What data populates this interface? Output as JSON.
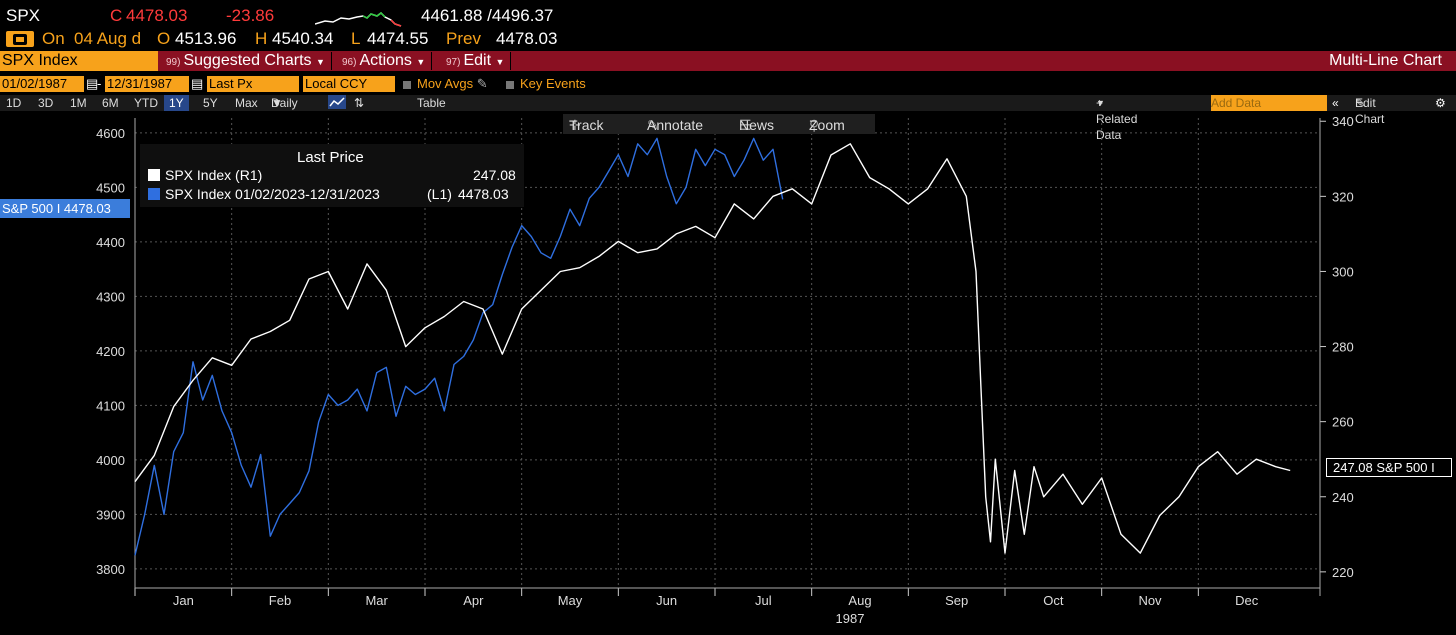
{
  "ticker": {
    "symbol": "SPX",
    "c_marker": "C",
    "last": "4478.03",
    "change": "-23.86",
    "range": "4461.88 /4496.37",
    "on_label": "On",
    "date": "04 Aug d",
    "open_label": "O",
    "open": "4513.96",
    "high_label": "H",
    "high": "4540.34",
    "low_label": "L",
    "low": "4474.55",
    "prev_label": "Prev",
    "prev": "4478.03"
  },
  "menubar": {
    "security": "SPX Index",
    "suggested_num": "99)",
    "suggested": "Suggested Charts",
    "actions_num": "96)",
    "actions": "Actions",
    "edit_num": "97)",
    "edit": "Edit",
    "title": "Multi-Line Chart"
  },
  "params": {
    "start_date": "01/02/1987",
    "end_date": "12/31/1987",
    "dash": "-",
    "field": "Last Px",
    "currency": "Local CCY",
    "mov_avgs": "Mov Avgs",
    "key_events": "Key Events"
  },
  "ranges": {
    "items": [
      "1D",
      "3D",
      "1M",
      "6M",
      "YTD",
      "1Y",
      "5Y",
      "Max"
    ],
    "selected": "1Y",
    "period": "Daily",
    "table": "Table",
    "related": "+ Related Data",
    "add_data_placeholder": "Add Data",
    "edit_chart": "Edit Chart"
  },
  "tools": {
    "track": "Track",
    "annotate": "Annotate",
    "news": "News",
    "zoom": "Zoom"
  },
  "legend": {
    "header": "Last Price",
    "s1_label": "SPX Index  (R1)",
    "s1_value": "247.08",
    "s2_label": "SPX Index 01/02/2023-12/31/2023",
    "s2_axis": "(L1)",
    "s2_value": "4478.03"
  },
  "tags": {
    "left": "S&P 500 I 4478.03",
    "right": "247.08 S&P 500 I"
  },
  "colors": {
    "accent_orange": "#f7a21b",
    "menubar_red": "#8a1022",
    "series_1987": "#ffffff",
    "series_2023": "#2f6fe0",
    "negative": "#ff3b3b"
  },
  "chart_data": {
    "type": "line",
    "x_label": "1987",
    "months": [
      "Jan",
      "Feb",
      "Mar",
      "Apr",
      "May",
      "Jun",
      "Jul",
      "Aug",
      "Sep",
      "Oct",
      "Nov",
      "Dec"
    ],
    "left_axis": {
      "ticks": [
        3800,
        3900,
        4000,
        4100,
        4200,
        4300,
        4400,
        4500,
        4600
      ],
      "ylim": [
        3765,
        4620
      ]
    },
    "right_axis": {
      "ticks": [
        220,
        240,
        260,
        280,
        300,
        320,
        340
      ],
      "ylim": [
        215.7,
        339.8
      ]
    },
    "grid": true,
    "series": [
      {
        "name": "SPX Index (R1)",
        "axis": "right",
        "x_month": [
          0.0,
          0.2,
          0.4,
          0.6,
          0.8,
          1.0,
          1.2,
          1.4,
          1.6,
          1.8,
          2.0,
          2.2,
          2.4,
          2.6,
          2.8,
          3.0,
          3.2,
          3.4,
          3.6,
          3.8,
          4.0,
          4.2,
          4.4,
          4.6,
          4.8,
          5.0,
          5.2,
          5.4,
          5.6,
          5.8,
          6.0,
          6.2,
          6.4,
          6.6,
          6.8,
          7.0,
          7.2,
          7.4,
          7.6,
          7.8,
          8.0,
          8.2,
          8.4,
          8.6,
          8.7,
          8.75,
          8.8,
          8.85,
          8.9,
          9.0,
          9.1,
          9.2,
          9.3,
          9.4,
          9.6,
          9.8,
          10.0,
          10.2,
          10.4,
          10.6,
          10.8,
          11.0,
          11.2,
          11.4,
          11.6,
          11.8,
          11.95
        ],
        "values": [
          244,
          251,
          264,
          271,
          277,
          275,
          282,
          284,
          287,
          298,
          300,
          290,
          302,
          295,
          280,
          285,
          288,
          292,
          290,
          278,
          290,
          295,
          300,
          301,
          304,
          308,
          305,
          306,
          310,
          312,
          309,
          318,
          314,
          320,
          322,
          318,
          331,
          334,
          325,
          322,
          318,
          322,
          330,
          320,
          300,
          270,
          240,
          228,
          250,
          225,
          247,
          230,
          248,
          240,
          246,
          238,
          245,
          230,
          225,
          235,
          240,
          248,
          252,
          246,
          250,
          248,
          247
        ]
      },
      {
        "name": "SPX Index 01/02/2023-12/31/2023 (L1)",
        "axis": "left",
        "x_month": [
          0.0,
          0.1,
          0.2,
          0.3,
          0.4,
          0.5,
          0.6,
          0.7,
          0.8,
          0.9,
          1.0,
          1.1,
          1.2,
          1.3,
          1.4,
          1.5,
          1.6,
          1.7,
          1.8,
          1.9,
          2.0,
          2.1,
          2.2,
          2.3,
          2.4,
          2.5,
          2.6,
          2.7,
          2.8,
          2.9,
          3.0,
          3.1,
          3.2,
          3.3,
          3.4,
          3.5,
          3.6,
          3.7,
          3.8,
          3.9,
          4.0,
          4.1,
          4.2,
          4.3,
          4.4,
          4.5,
          4.6,
          4.7,
          4.8,
          4.9,
          5.0,
          5.1,
          5.2,
          5.3,
          5.4,
          5.5,
          5.6,
          5.7,
          5.8,
          5.9,
          6.0,
          6.1,
          6.2,
          6.3,
          6.4,
          6.5,
          6.6,
          6.7
        ],
        "values": [
          3825,
          3900,
          3990,
          3900,
          4015,
          4050,
          4180,
          4110,
          4155,
          4090,
          4050,
          3990,
          3950,
          4010,
          3860,
          3900,
          3920,
          3940,
          3980,
          4070,
          4120,
          4100,
          4110,
          4130,
          4090,
          4160,
          4170,
          4080,
          4135,
          4120,
          4130,
          4150,
          4090,
          4175,
          4190,
          4220,
          4270,
          4285,
          4340,
          4390,
          4430,
          4410,
          4380,
          4370,
          4410,
          4460,
          4430,
          4480,
          4500,
          4530,
          4560,
          4520,
          4580,
          4560,
          4590,
          4520,
          4470,
          4500,
          4570,
          4540,
          4570,
          4560,
          4520,
          4550,
          4590,
          4550,
          4570,
          4478
        ]
      }
    ]
  }
}
